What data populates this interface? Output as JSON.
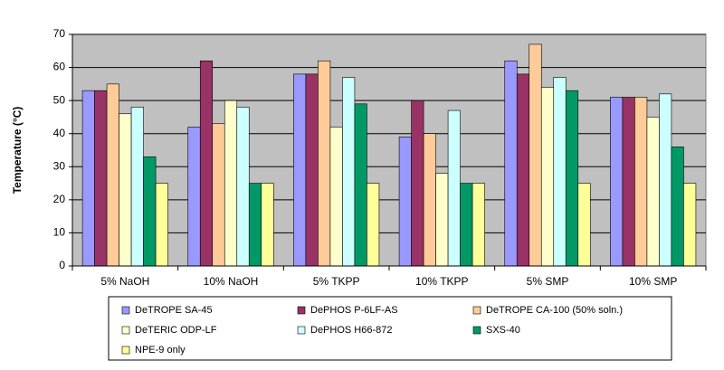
{
  "chart_data": {
    "type": "bar",
    "y_label": "Temperature (°C)",
    "categories": [
      "5% NaOH",
      "10% NaOH",
      "5% TKPP",
      "10% TKPP",
      "5% SMP",
      "10% SMP"
    ],
    "series": [
      {
        "name": "DeTROPE SA-45",
        "color": "#9999ff",
        "values": [
          53,
          42,
          58,
          39,
          62,
          51
        ]
      },
      {
        "name": "DePHOS P-6LF-AS",
        "color": "#993366",
        "values": [
          53,
          62,
          58,
          50,
          58,
          51
        ]
      },
      {
        "name": "DeTROPE CA-100 (50% soln.)",
        "color": "#ffcc99",
        "values": [
          55,
          43,
          62,
          40,
          67,
          51
        ]
      },
      {
        "name": "DeTERIC ODP-LF",
        "color": "#ffffcc",
        "values": [
          46,
          50,
          42,
          28,
          54,
          45
        ]
      },
      {
        "name": "DePHOS H66-872",
        "color": "#ccffff",
        "values": [
          48,
          48,
          57,
          47,
          57,
          52
        ]
      },
      {
        "name": "SXS-40",
        "color": "#009966",
        "values": [
          33,
          25,
          49,
          25,
          53,
          36
        ]
      },
      {
        "name": "NPE-9 only",
        "color": "#ffff99",
        "values": [
          25,
          25,
          25,
          25,
          25,
          25
        ]
      }
    ],
    "ylim": [
      0,
      70
    ],
    "yticks": [
      0,
      10,
      20,
      30,
      40,
      50,
      60,
      70
    ],
    "grid": true,
    "legend": "bottom",
    "plot_background": "#c0c0c0"
  }
}
